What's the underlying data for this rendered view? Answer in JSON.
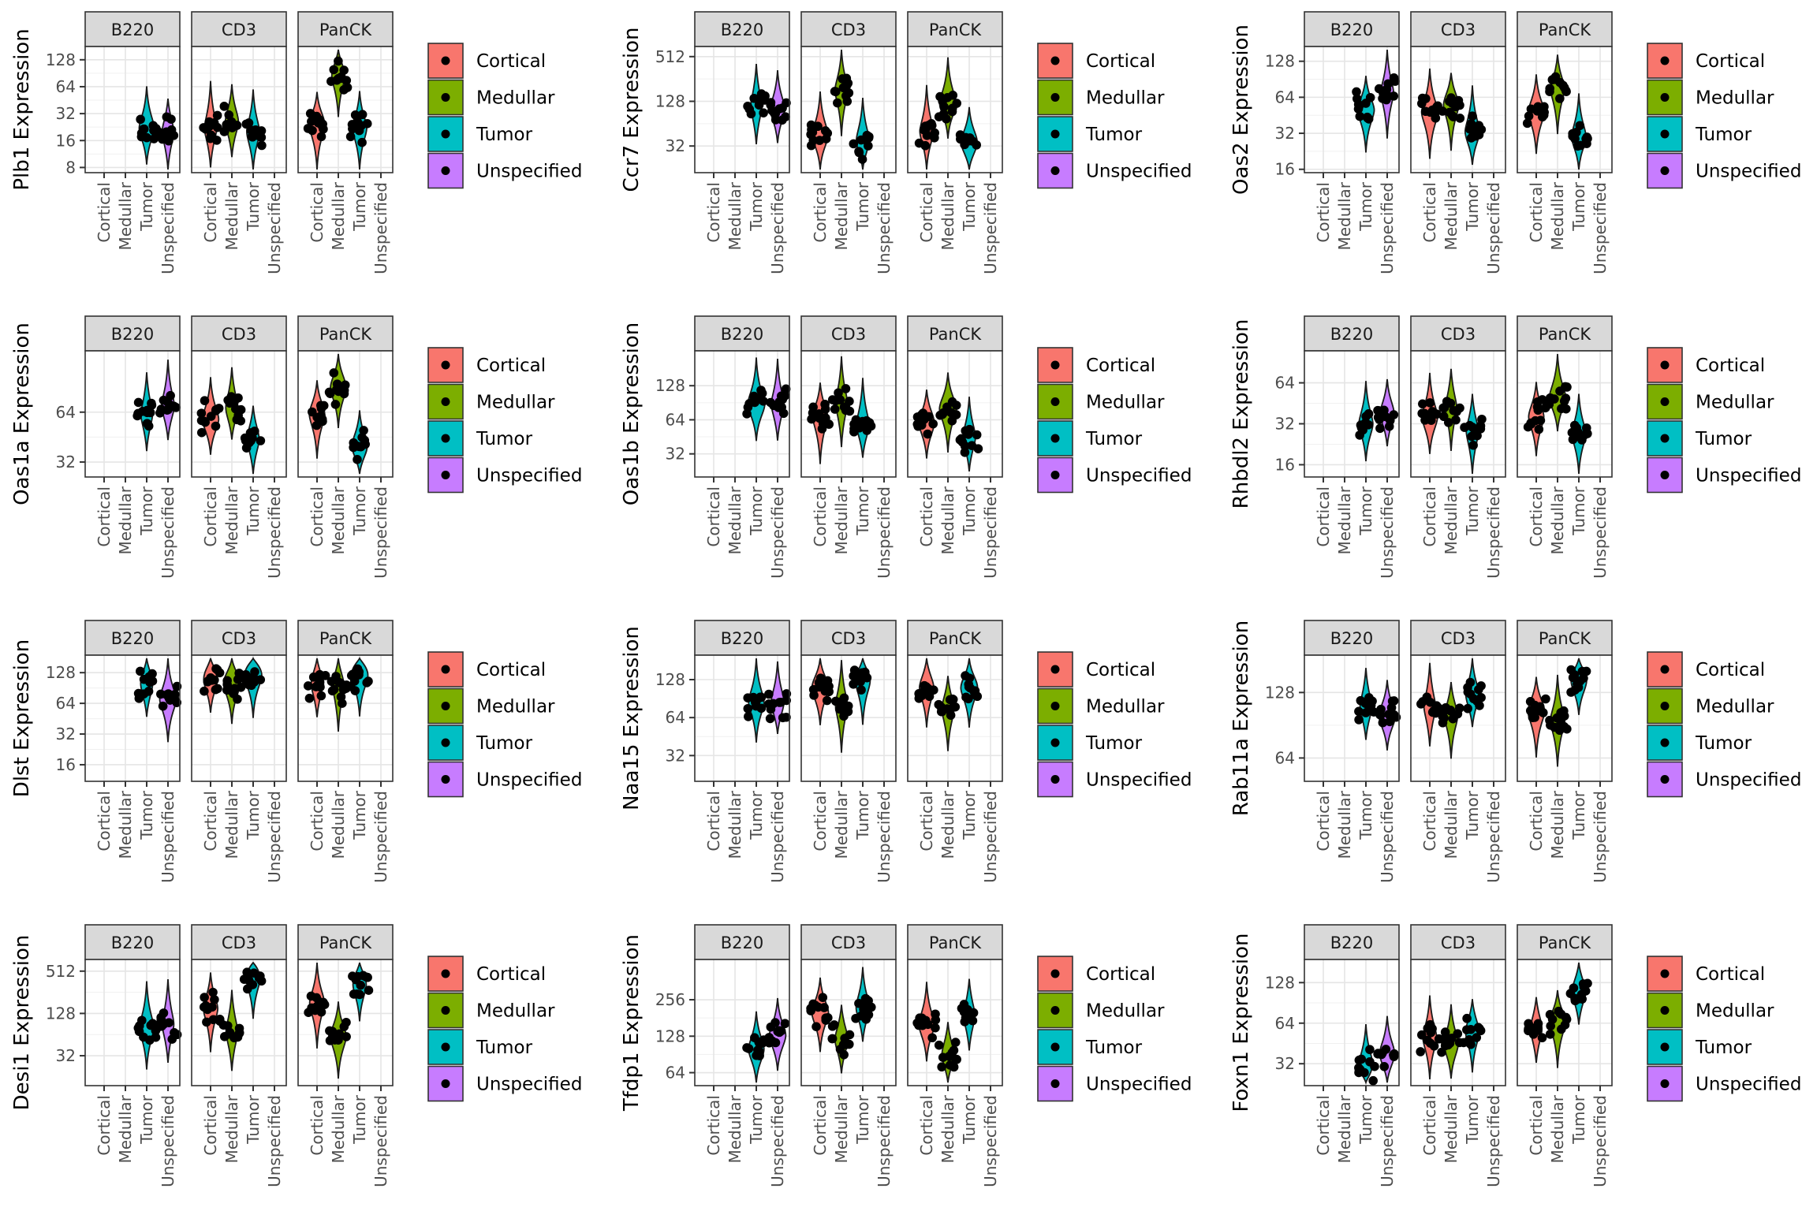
{
  "chart_data": {
    "type": "violin",
    "facets": [
      "B220",
      "CD3",
      "PanCK"
    ],
    "categories": [
      "Cortical",
      "Medullar",
      "Tumor",
      "Unspecified"
    ],
    "colors": {
      "Cortical": "#F8766D",
      "Medullar": "#7CAE00",
      "Tumor": "#00BFC4",
      "Unspecified": "#C77CFF"
    },
    "legend": {
      "position": "right",
      "items": [
        "Cortical",
        "Medullar",
        "Tumor",
        "Unspecified"
      ]
    },
    "grid": true,
    "scale": "log2",
    "panels": [
      {
        "gene": "Plb1",
        "ylabel": "Plb1 Expression",
        "ylim": [
          7,
          180
        ],
        "yticks": [
          8,
          16,
          32,
          64,
          128
        ],
        "data": {
          "B220": {
            "Tumor": 22,
            "Unspecified": 20
          },
          "CD3": {
            "Cortical": 22,
            "Medullar": 26,
            "Tumor": 20
          },
          "PanCK": {
            "Cortical": 24,
            "Medullar": 85,
            "Tumor": 22
          }
        }
      },
      {
        "gene": "Ccr7",
        "ylabel": "Ccr7 Expression",
        "ylim": [
          14,
          700
        ],
        "yticks": [
          32,
          128,
          512
        ],
        "data": {
          "B220": {
            "Tumor": 110,
            "Unspecified": 100
          },
          "CD3": {
            "Cortical": 45,
            "Medullar": 180,
            "Tumor": 38
          },
          "PanCK": {
            "Cortical": 50,
            "Medullar": 120,
            "Tumor": 36
          }
        }
      },
      {
        "gene": "Oas2",
        "ylabel": "Oas2 Expression",
        "ylim": [
          15,
          170
        ],
        "yticks": [
          16,
          32,
          64,
          128
        ],
        "data": {
          "B220": {
            "Tumor": 50,
            "Unspecified": 70
          },
          "CD3": {
            "Cortical": 48,
            "Medullar": 55,
            "Tumor": 33
          },
          "PanCK": {
            "Cortical": 48,
            "Medullar": 75,
            "Tumor": 30
          }
        }
      },
      {
        "gene": "Oas1a",
        "ylabel": "Oas1a Expression",
        "ylim": [
          26,
          150
        ],
        "yticks": [
          32,
          64
        ],
        "data": {
          "B220": {
            "Tumor": 62,
            "Unspecified": 70
          },
          "CD3": {
            "Cortical": 58,
            "Medullar": 68,
            "Tumor": 44
          },
          "PanCK": {
            "Cortical": 62,
            "Medullar": 90,
            "Tumor": 40
          }
        }
      },
      {
        "gene": "Oas1b",
        "ylabel": "Oas1b Expression",
        "ylim": [
          20,
          260
        ],
        "yticks": [
          32,
          64,
          128
        ],
        "data": {
          "B220": {
            "Tumor": 88,
            "Unspecified": 88
          },
          "CD3": {
            "Cortical": 68,
            "Medullar": 90,
            "Tumor": 58
          },
          "PanCK": {
            "Cortical": 60,
            "Medullar": 80,
            "Tumor": 45
          }
        }
      },
      {
        "gene": "Rhbdl2",
        "ylabel": "Rhbdl2 Expression",
        "ylim": [
          13,
          110
        ],
        "yticks": [
          16,
          32,
          64
        ],
        "data": {
          "B220": {
            "Tumor": 32,
            "Unspecified": 38
          },
          "CD3": {
            "Cortical": 36,
            "Medullar": 42,
            "Tumor": 28
          },
          "PanCK": {
            "Cortical": 36,
            "Medullar": 50,
            "Tumor": 27
          }
        }
      },
      {
        "gene": "Dlst",
        "ylabel": "Dlst Expression",
        "ylim": [
          11,
          190
        ],
        "yticks": [
          16,
          32,
          64,
          128
        ],
        "data": {
          "B220": {
            "Tumor": 100,
            "Unspecified": 70
          },
          "CD3": {
            "Cortical": 110,
            "Medullar": 100,
            "Tumor": 120
          },
          "PanCK": {
            "Cortical": 100,
            "Medullar": 95,
            "Tumor": 120
          }
        }
      },
      {
        "gene": "Naa15",
        "ylabel": "Naa15 Expression",
        "ylim": [
          20,
          200
        ],
        "yticks": [
          32,
          64,
          128
        ],
        "data": {
          "B220": {
            "Tumor": 85,
            "Unspecified": 85
          },
          "CD3": {
            "Cortical": 110,
            "Medullar": 80,
            "Tumor": 125
          },
          "PanCK": {
            "Cortical": 110,
            "Medullar": 75,
            "Tumor": 110
          }
        }
      },
      {
        "gene": "Rab11a",
        "ylabel": "Rab11a Expression",
        "ylim": [
          50,
          190
        ],
        "yticks": [
          64,
          128
        ],
        "data": {
          "B220": {
            "Tumor": 110,
            "Unspecified": 100
          },
          "CD3": {
            "Cortical": 110,
            "Medullar": 100,
            "Tumor": 125
          },
          "PanCK": {
            "Cortical": 105,
            "Medullar": 95,
            "Tumor": 145
          }
        }
      },
      {
        "gene": "Desi1",
        "ylabel": "Desi1 Expression",
        "ylim": [
          12,
          750
        ],
        "yticks": [
          32,
          128,
          512
        ],
        "data": {
          "B220": {
            "Tumor": 80,
            "Unspecified": 90
          },
          "CD3": {
            "Cortical": 150,
            "Medullar": 70,
            "Tumor": 400
          },
          "PanCK": {
            "Cortical": 180,
            "Medullar": 60,
            "Tumor": 330
          }
        }
      },
      {
        "gene": "Tfdp1",
        "ylabel": "Tfdp1 Expression",
        "ylim": [
          50,
          550
        ],
        "yticks": [
          64,
          128,
          256
        ],
        "data": {
          "B220": {
            "Tumor": 100,
            "Unspecified": 130
          },
          "CD3": {
            "Cortical": 200,
            "Medullar": 120,
            "Tumor": 220
          },
          "PanCK": {
            "Cortical": 160,
            "Medullar": 90,
            "Tumor": 190
          }
        }
      },
      {
        "gene": "Foxn1",
        "ylabel": "Foxn1 Expression",
        "ylim": [
          22,
          190
        ],
        "yticks": [
          32,
          64,
          128
        ],
        "data": {
          "B220": {
            "Tumor": 32,
            "Unspecified": 38
          },
          "CD3": {
            "Cortical": 50,
            "Medullar": 45,
            "Tumor": 55
          },
          "PanCK": {
            "Cortical": 58,
            "Medullar": 65,
            "Tumor": 110
          }
        }
      }
    ]
  }
}
